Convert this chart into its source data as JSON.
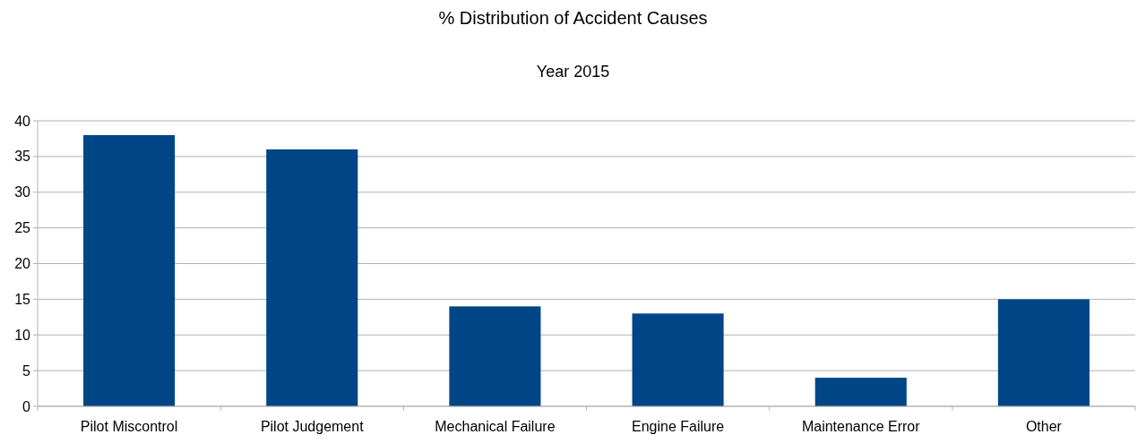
{
  "chart_data": {
    "type": "bar",
    "title": "% Distribution of Accident Causes",
    "subtitle": "Year 2015",
    "categories": [
      "Pilot Miscontrol",
      "Pilot Judgement",
      "Mechanical Failure",
      "Engine Failure",
      "Maintenance Error",
      "Other"
    ],
    "values": [
      38,
      36,
      14,
      13,
      4,
      15
    ],
    "color": "#004586",
    "ylim": [
      0,
      40
    ],
    "yticks": [
      0,
      5,
      10,
      15,
      20,
      25,
      30,
      35,
      40
    ],
    "grid": "y"
  }
}
